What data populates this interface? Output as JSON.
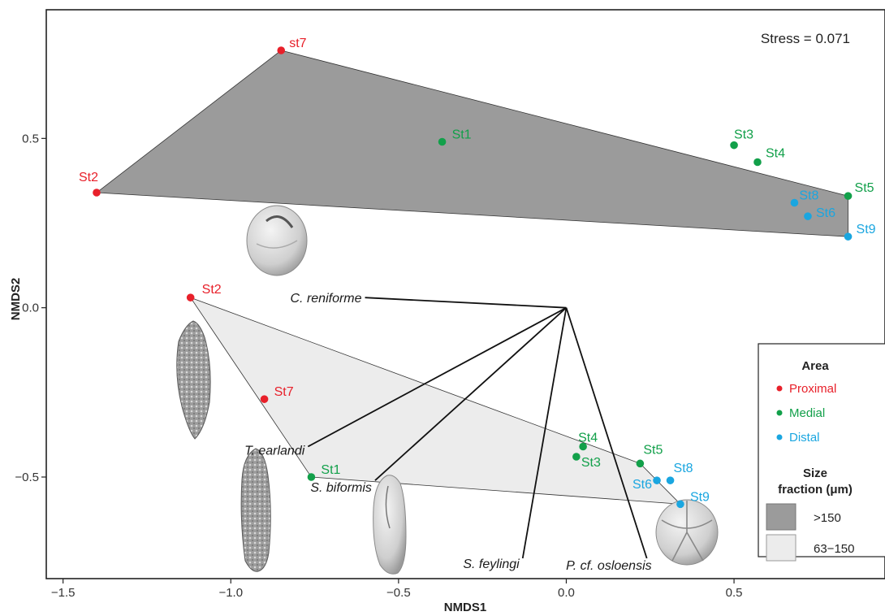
{
  "chart_data": {
    "type": "scatter",
    "title": "",
    "xlabel": "NMDS1",
    "ylabel": "NMDS2",
    "xlim": [
      -1.55,
      0.95
    ],
    "ylim": [
      -0.8,
      0.88
    ],
    "xticks": [
      -1.5,
      -1.0,
      -0.5,
      0.0,
      0.5
    ],
    "xtick_labels": [
      "−1.5",
      "−1.0",
      "−0.5",
      "0.0",
      "0.5"
    ],
    "yticks": [
      -0.5,
      0.0,
      0.5
    ],
    "ytick_labels": [
      "−0.5",
      "0.0",
      "0.5"
    ],
    "grid": false,
    "annotation": "Stress = 0.071",
    "colors": {
      "Proximal": "#e8202a",
      "Medial": "#12a04a",
      "Distal": "#1aa6e0",
      "hull_large": "#9b9b9b",
      "hull_small": "#ececec"
    },
    "series": [
      {
        "name": ">150",
        "fill": "#9b9b9b",
        "points": [
          {
            "label": "st7",
            "area": "Proximal",
            "x": -0.85,
            "y": 0.76
          },
          {
            "label": "St2",
            "area": "Proximal",
            "x": -1.4,
            "y": 0.34
          },
          {
            "label": "St1",
            "area": "Medial",
            "x": -0.37,
            "y": 0.49
          },
          {
            "label": "St3",
            "area": "Medial",
            "x": 0.5,
            "y": 0.48
          },
          {
            "label": "St4",
            "area": "Medial",
            "x": 0.57,
            "y": 0.43
          },
          {
            "label": "St5",
            "area": "Medial",
            "x": 0.84,
            "y": 0.33
          },
          {
            "label": "St8",
            "area": "Distal",
            "x": 0.68,
            "y": 0.31
          },
          {
            "label": "St6",
            "area": "Distal",
            "x": 0.72,
            "y": 0.27
          },
          {
            "label": "St9",
            "area": "Distal",
            "x": 0.84,
            "y": 0.21
          }
        ],
        "hull": [
          "st7",
          "St5",
          "St9",
          "St2"
        ]
      },
      {
        "name": "63−150",
        "fill": "#ececec",
        "points": [
          {
            "label": "St2",
            "area": "Proximal",
            "x": -1.12,
            "y": 0.03
          },
          {
            "label": "St7",
            "area": "Proximal",
            "x": -0.9,
            "y": -0.27
          },
          {
            "label": "St1",
            "area": "Medial",
            "x": -0.76,
            "y": -0.5
          },
          {
            "label": "St4",
            "area": "Medial",
            "x": 0.05,
            "y": -0.41
          },
          {
            "label": "St3",
            "area": "Medial",
            "x": 0.03,
            "y": -0.44
          },
          {
            "label": "St5",
            "area": "Medial",
            "x": 0.22,
            "y": -0.46
          },
          {
            "label": "St6",
            "area": "Distal",
            "x": 0.27,
            "y": -0.51
          },
          {
            "label": "St8",
            "area": "Distal",
            "x": 0.31,
            "y": -0.51
          },
          {
            "label": "St9",
            "area": "Distal",
            "x": 0.34,
            "y": -0.58
          }
        ],
        "hull": [
          "St2",
          "St5",
          "St9",
          "St1"
        ]
      }
    ],
    "species_vectors": {
      "origin": {
        "x": 0.0,
        "y": 0.0
      },
      "items": [
        {
          "name": "C. reniforme",
          "x": -0.6,
          "y": 0.03
        },
        {
          "name": "T. earlandi",
          "x": -0.77,
          "y": -0.41
        },
        {
          "name": "S. biformis",
          "x": -0.57,
          "y": -0.51
        },
        {
          "name": "S. feylingi",
          "x": -0.13,
          "y": -0.74
        },
        {
          "name": "P. cf. osloensis",
          "x": 0.24,
          "y": -0.74
        }
      ]
    },
    "legend": {
      "position": "right",
      "area_title": "Area",
      "area_entries": [
        {
          "label": "Proximal",
          "color": "#e8202a"
        },
        {
          "label": "Medial",
          "color": "#12a04a"
        },
        {
          "label": "Distal",
          "color": "#1aa6e0"
        }
      ],
      "size_title_1": "Size",
      "size_title_2": "fraction (μm)",
      "size_entries": [
        {
          "label": ">150",
          "fill": "#9b9b9b"
        },
        {
          "label": "63−150",
          "fill": "#ececec"
        }
      ]
    }
  }
}
